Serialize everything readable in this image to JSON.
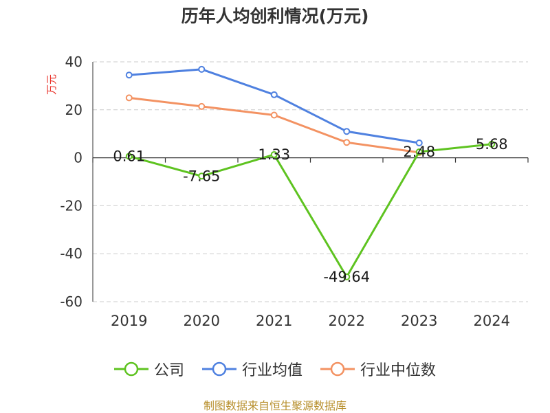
{
  "chart_data": {
    "type": "line",
    "title": "历年人均创利情况(万元)",
    "ylabel": "万元",
    "xlabel": "",
    "categories": [
      "2019",
      "2020",
      "2021",
      "2022",
      "2023",
      "2024"
    ],
    "ylim": [
      -60,
      40
    ],
    "yticks": [
      "40",
      "20",
      "0",
      "-20",
      "-40",
      "-60"
    ],
    "grid": true,
    "legend_position": "bottom",
    "series": [
      {
        "name": "公司",
        "color": "#5ec320",
        "values": [
          0.61,
          -7.65,
          1.33,
          -49.64,
          2.48,
          5.68
        ],
        "labels": [
          "0.61",
          "-7.65",
          "1.33",
          "-49.64",
          "2.48",
          "5.68"
        ]
      },
      {
        "name": "行业均值",
        "color": "#4f81e0",
        "values": [
          34.5,
          36.9,
          26.3,
          11.0,
          6.2,
          null
        ],
        "labels": null
      },
      {
        "name": "行业中位数",
        "color": "#f39262",
        "values": [
          25.0,
          21.4,
          17.8,
          6.4,
          2.2,
          null
        ],
        "labels": null
      }
    ]
  },
  "source": "制图数据来自恒生聚源数据库"
}
